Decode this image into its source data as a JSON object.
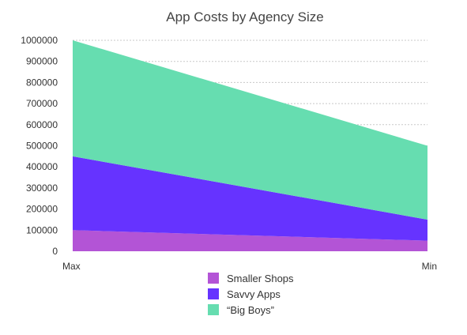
{
  "chart_data": {
    "type": "area",
    "stacked": true,
    "title": "App Costs by Agency Size",
    "categories": [
      "Max",
      "Min"
    ],
    "ylim": [
      0,
      1000000
    ],
    "yticks": [
      0,
      100000,
      200000,
      300000,
      400000,
      500000,
      600000,
      700000,
      800000,
      900000,
      1000000
    ],
    "ytick_labels": [
      "0",
      "100000",
      "200000",
      "300000",
      "400000",
      "500000",
      "600000",
      "700000",
      "800000",
      "900000",
      "1000000"
    ],
    "grid": true,
    "legend_position": "bottom",
    "series": [
      {
        "name": "Smaller Shops",
        "values": [
          100000,
          50000
        ],
        "color": "#b354d6"
      },
      {
        "name": "Savvy Apps",
        "values": [
          350000,
          100000
        ],
        "color": "#6633ff"
      },
      {
        "name": "“Big Boys”",
        "values": [
          550000,
          350000
        ],
        "color": "#66ddb0"
      }
    ]
  }
}
